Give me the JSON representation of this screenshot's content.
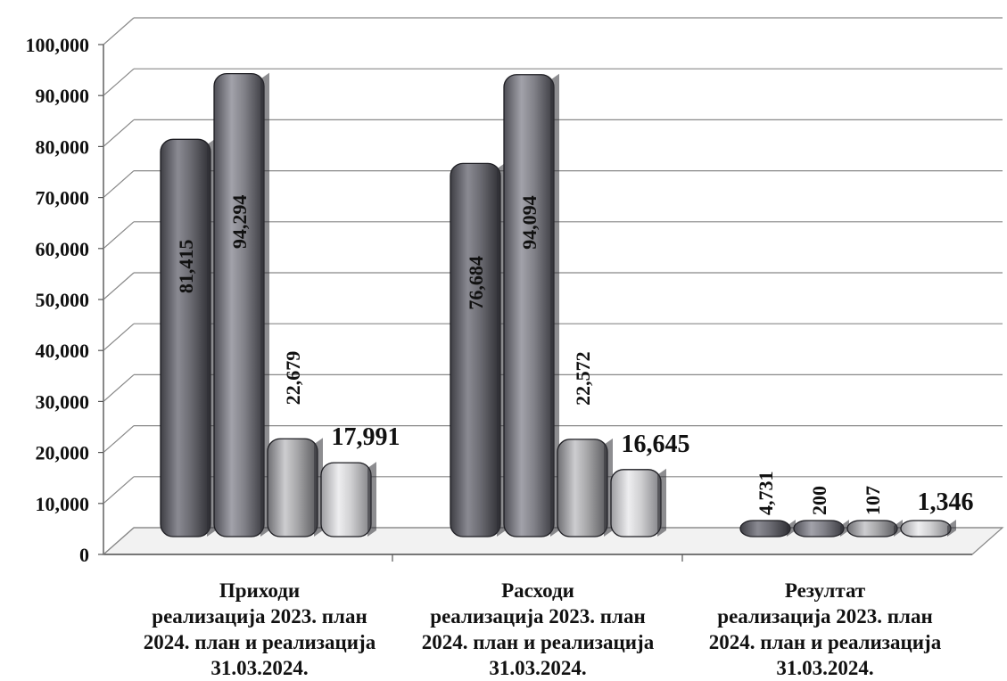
{
  "chart_data": {
    "type": "bar",
    "categories": [
      [
        "Приходи",
        "реализација 2023. план",
        "2024. план и реализација",
        "31.03.2024."
      ],
      [
        "Расходи",
        "реализација 2023. план",
        "2024. план и реализација",
        "31.03.2024."
      ],
      [
        "Резултат",
        "реализација 2023. план",
        "2024. план и реализација",
        "31.03.2024."
      ]
    ],
    "series": [
      {
        "values": [
          81415,
          76684,
          4731
        ],
        "labels": [
          "81,415",
          "76,684",
          "4,731"
        ],
        "color": "#6b6b72"
      },
      {
        "values": [
          94294,
          94094,
          200
        ],
        "labels": [
          "94,294",
          "94,094",
          "200"
        ],
        "color": "#828289"
      },
      {
        "values": [
          22679,
          22572,
          107
        ],
        "labels": [
          "22,679",
          "22,572",
          "107"
        ],
        "color": "#a6a6a8"
      },
      {
        "values": [
          17991,
          16645,
          1346
        ],
        "labels": [
          "17,991",
          "16,645",
          "1,346"
        ],
        "color": "#cfcfd1"
      }
    ],
    "ylim": [
      0,
      100000
    ],
    "yticks": [
      0,
      10000,
      20000,
      30000,
      40000,
      50000,
      60000,
      70000,
      80000,
      90000,
      100000
    ],
    "ytick_labels": [
      "0",
      "10,000",
      "20,000",
      "30,000",
      "40,000",
      "50,000",
      "60,000",
      "70,000",
      "80,000",
      "90,000",
      "100,000"
    ],
    "grid": true,
    "legend": "none",
    "style": "3d-cylinder"
  }
}
